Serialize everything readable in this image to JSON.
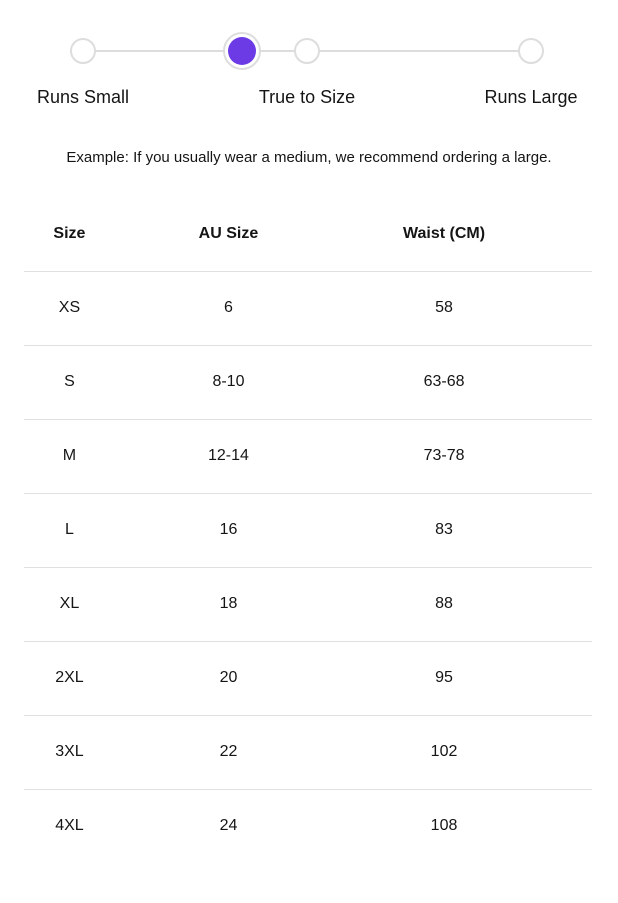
{
  "fit_scale": {
    "labels": [
      "Runs Small",
      "True to Size",
      "Runs Large"
    ],
    "selected": "True to Size",
    "indicator_position_pct": 35.5,
    "indicator_color": "#6D3BE6",
    "track_color": "#dddddd"
  },
  "example_note": "Example: If you usually wear a medium, we recommend ordering a large.",
  "size_table": {
    "columns": [
      "Size",
      "AU Size",
      "Waist (CM)"
    ],
    "rows": [
      [
        "XS",
        "6",
        "58"
      ],
      [
        "S",
        "8-10",
        "63-68"
      ],
      [
        "M",
        "12-14",
        "73-78"
      ],
      [
        "L",
        "16",
        "83"
      ],
      [
        "XL",
        "18",
        "88"
      ],
      [
        "2XL",
        "20",
        "95"
      ],
      [
        "3XL",
        "22",
        "102"
      ],
      [
        "4XL",
        "24",
        "108"
      ]
    ]
  }
}
